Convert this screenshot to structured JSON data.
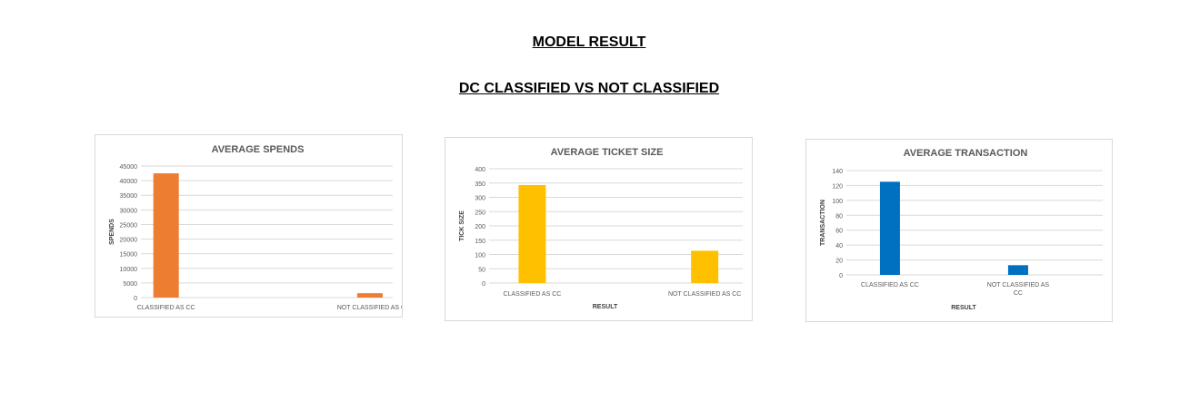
{
  "page": {
    "title": "MODEL RESULT",
    "subtitle": "DC CLASSIFIED VS NOT CLASSIFIED"
  },
  "chart_data": [
    {
      "type": "bar",
      "title": "AVERAGE SPENDS",
      "xlabel": "",
      "ylabel": "SPENDS",
      "categories": [
        "CLASSIFIED AS CC",
        "NOT CLASSIFIED AS CC"
      ],
      "series": [
        {
          "values": [
            42500,
            1500
          ]
        }
      ],
      "ylim": [
        0,
        45000
      ],
      "yticks": [
        0,
        5000,
        10000,
        15000,
        20000,
        25000,
        30000,
        35000,
        40000,
        45000
      ],
      "color": "#ED7D31",
      "grid": true,
      "legend": "none"
    },
    {
      "type": "bar",
      "title": "AVERAGE TICKET SIZE",
      "xlabel": "RESULT",
      "ylabel": "TICK SIZE",
      "categories": [
        "CLASSIFIED AS CC",
        "NOT CLASSIFIED AS CC"
      ],
      "series": [
        {
          "values": [
            343,
            113
          ]
        }
      ],
      "ylim": [
        0,
        400
      ],
      "yticks": [
        0,
        50,
        100,
        150,
        200,
        250,
        300,
        350,
        400
      ],
      "color": "#FFC000",
      "grid": true,
      "legend": "none"
    },
    {
      "type": "bar",
      "title": "AVERAGE TRANSACTION",
      "xlabel": "RESULT",
      "ylabel": "TRANSACTION",
      "categories": [
        "CLASSIFIED AS CC",
        "NOT CLASSIFIED AS CC"
      ],
      "series": [
        {
          "values": [
            125,
            13
          ]
        }
      ],
      "ylim": [
        0,
        140
      ],
      "yticks": [
        0,
        20,
        40,
        60,
        80,
        100,
        120,
        140
      ],
      "color": "#0070C0",
      "grid": true,
      "legend": "none"
    }
  ]
}
